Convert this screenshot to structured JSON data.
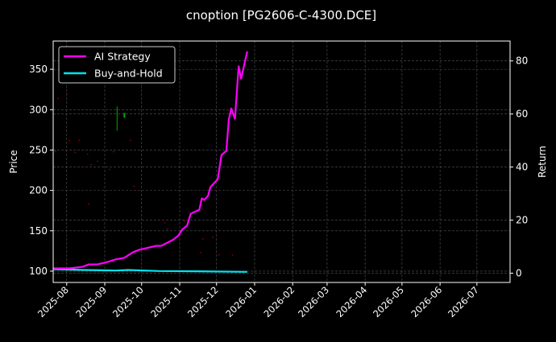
{
  "chart_data": {
    "type": "line",
    "title": "cnoption [PG2606-C-4300.DCE]",
    "ylabel": "Price",
    "y2label": "Return",
    "ylim": [
      86,
      385
    ],
    "y2lim": [
      -3.5,
      87.5
    ],
    "xlim": [
      "2025-07-21",
      "2026-07-28"
    ],
    "yticks": [
      100,
      150,
      200,
      250,
      300,
      350
    ],
    "y2ticks": [
      0,
      20,
      40,
      60,
      80
    ],
    "xticks": [
      "2025-08",
      "2025-09",
      "2025-10",
      "2025-11",
      "2025-12",
      "2026-01",
      "2026-02",
      "2026-03",
      "2026-04",
      "2026-05",
      "2026-06",
      "2026-07"
    ],
    "grid": true,
    "legend": {
      "placement": "top-left",
      "entries": [
        "AI Strategy",
        "Buy-and-Hold"
      ]
    },
    "series": [
      {
        "name": "AI Strategy",
        "axis": "right",
        "color": "#ff00ff",
        "x": [
          "2025-07-21",
          "2025-08-03",
          "2025-08-14",
          "2025-08-19",
          "2025-08-26",
          "2025-09-03",
          "2025-09-10",
          "2025-09-17",
          "2025-09-24",
          "2025-09-29",
          "2025-10-13",
          "2025-10-17",
          "2025-10-27",
          "2025-10-31",
          "2025-11-03",
          "2025-11-07",
          "2025-11-10",
          "2025-11-17",
          "2025-11-19",
          "2025-11-21",
          "2025-11-24",
          "2025-11-26",
          "2025-12-02",
          "2025-12-05",
          "2025-12-09",
          "2025-12-11",
          "2025-12-13",
          "2025-12-16",
          "2025-12-19",
          "2025-12-21",
          "2025-12-26"
        ],
        "values": [
          1.8,
          1.8,
          2.4,
          3.3,
          3.3,
          4.2,
          5.2,
          5.8,
          7.9,
          8.8,
          10.3,
          10.3,
          12.7,
          14.2,
          16.4,
          17.9,
          22.4,
          23.9,
          28.2,
          27.6,
          29.1,
          32.4,
          35.4,
          44.5,
          46.1,
          57.9,
          62.1,
          58.2,
          78.0,
          73.3,
          83.6
        ]
      },
      {
        "name": "Buy-and-Hold",
        "axis": "right",
        "color": "#00e5ee",
        "x": [
          "2025-07-21",
          "2025-08-15",
          "2025-09-10",
          "2025-09-20",
          "2025-10-15",
          "2025-11-15",
          "2025-12-26"
        ],
        "values": [
          1.5,
          1.2,
          1.0,
          1.2,
          0.8,
          0.7,
          0.5
        ]
      }
    ],
    "price_points": {
      "color": "#8b0000",
      "x": [
        "2025-07-23",
        "2025-07-25",
        "2025-08-01",
        "2025-08-03",
        "2025-08-08",
        "2025-08-11",
        "2025-08-18",
        "2025-08-19",
        "2025-08-21",
        "2025-08-26",
        "2025-09-05",
        "2025-09-08",
        "2025-09-22",
        "2025-09-25",
        "2025-10-20",
        "2025-10-22",
        "2025-11-05",
        "2025-11-18",
        "2025-11-20",
        "2025-11-28",
        "2025-12-03",
        "2025-12-14"
      ],
      "values": [
        248,
        314,
        320,
        262,
        247,
        262,
        245,
        183,
        232,
        236,
        226,
        248,
        262,
        205,
        160,
        152,
        162,
        123,
        140,
        142,
        120,
        120
      ]
    },
    "price_bars": {
      "color": "#00aa00",
      "x": [
        "2025-09-11",
        "2025-09-17"
      ],
      "low": [
        274,
        290
      ],
      "high": [
        304,
        296
      ]
    }
  }
}
